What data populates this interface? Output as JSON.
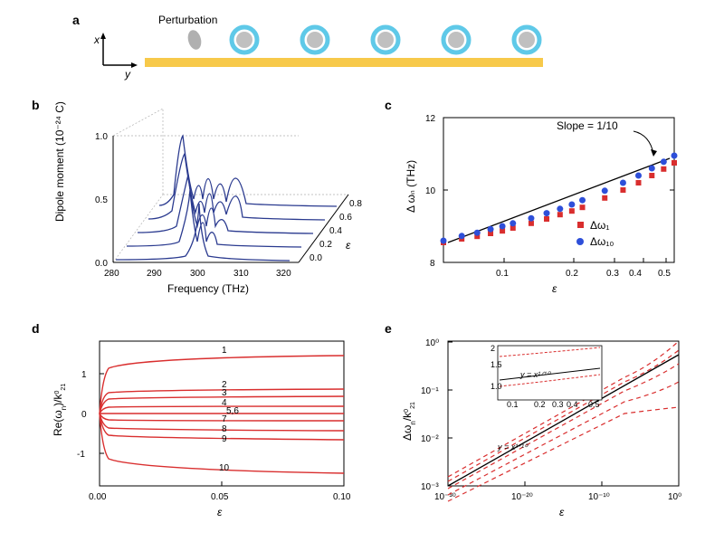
{
  "panel_a": {
    "label": "a",
    "perturbation_label": "Perturbation",
    "x_axis_label": "x",
    "y_axis_label": "y",
    "ring_outer_color": "#5fc9e8",
    "ring_inner_color": "#c0c0c0",
    "perturbation_color": "#b0b0b0",
    "bar_color": "#f7c94a",
    "n_rings": 5
  },
  "panel_b": {
    "label": "b",
    "xlabel": "Frequency (THz)",
    "ylabel": "Dipole moment (10⁻²⁴ C)",
    "zlabel": "ε",
    "xmin": 280,
    "xmax": 320,
    "xticks": [
      280,
      290,
      300,
      310,
      320
    ],
    "ymin": 0.0,
    "ymax": 1.0,
    "yticks": [
      0.0,
      0.5,
      1.0
    ],
    "zticks": [
      0.0,
      0.2,
      0.4,
      0.6,
      0.8
    ],
    "line_color": "#2a3a8f",
    "grid_color": "#d0d0d0",
    "label_fontsize": 12,
    "tick_fontsize": 10
  },
  "panel_c": {
    "label": "c",
    "xlabel": "ε",
    "ylabel": "Δ ωₙ (THz)",
    "slope_label": "Slope = 1/10",
    "xmin_log": 0.05,
    "xmax_log": 0.5,
    "xticks": [
      0.1,
      0.2,
      0.3,
      0.4,
      0.5
    ],
    "ymin": 8,
    "ymax": 12,
    "yticks": [
      8,
      10,
      12
    ],
    "series1": {
      "label": "Δω₁",
      "color": "#d92e2e",
      "marker": "square"
    },
    "series2": {
      "label": "Δω₁₀",
      "color": "#2e4fd9",
      "marker": "circle"
    },
    "line_color": "#000000",
    "data_x": [
      0.05,
      0.06,
      0.07,
      0.08,
      0.09,
      0.1,
      0.12,
      0.14,
      0.16,
      0.18,
      0.2,
      0.25,
      0.3,
      0.35,
      0.4,
      0.45,
      0.5
    ],
    "data_y1": [
      8.55,
      8.65,
      8.72,
      8.8,
      8.87,
      8.95,
      9.08,
      9.2,
      9.32,
      9.42,
      9.52,
      9.78,
      10.0,
      10.2,
      10.4,
      10.58,
      10.75
    ],
    "data_y2": [
      8.6,
      8.73,
      8.82,
      8.92,
      9.0,
      9.08,
      9.22,
      9.36,
      9.48,
      9.6,
      9.72,
      9.98,
      10.2,
      10.4,
      10.6,
      10.78,
      10.95
    ]
  },
  "panel_d": {
    "label": "d",
    "xlabel": "ε",
    "ylabel": "Re(ωₙ)/k²₁⁰",
    "xmin": 0.0,
    "xmax": 0.1,
    "xticks": [
      0.0,
      0.05,
      0.1
    ],
    "ymin": -1.8,
    "ymax": 1.8,
    "yticks": [
      -1,
      0,
      1
    ],
    "line_color": "#d92e2e",
    "curve_labels": [
      "1",
      "2",
      "3",
      "4",
      "5,6",
      "7",
      "8",
      "9",
      "10"
    ],
    "end_values": [
      1.45,
      0.6,
      0.42,
      0.18,
      0.0,
      -0.18,
      -0.42,
      -0.65,
      -1.5
    ]
  },
  "panel_e": {
    "label": "e",
    "xlabel": "ε",
    "ylabel": "Δωₙ/k²₁⁰",
    "xmin_exp": -30,
    "xmax_exp": 0,
    "xticks_exp": [
      -30,
      -20,
      -10,
      0
    ],
    "ymin_exp": -3,
    "ymax_exp": 0,
    "yticks_exp": [
      -3,
      -2,
      -1,
      0
    ],
    "line_color": "#d92e2e",
    "fit_label": "y = x¹ᐟ¹⁰",
    "fit_color": "#000000",
    "inset": {
      "ymin": 0.5,
      "ymax": 2.0,
      "yticks": [
        1.0,
        1.5
      ],
      "xticks": [
        0.1,
        0.2,
        0.3,
        0.4,
        0.5
      ],
      "fit_label": "y = x¹ᐟ¹⁰"
    }
  }
}
